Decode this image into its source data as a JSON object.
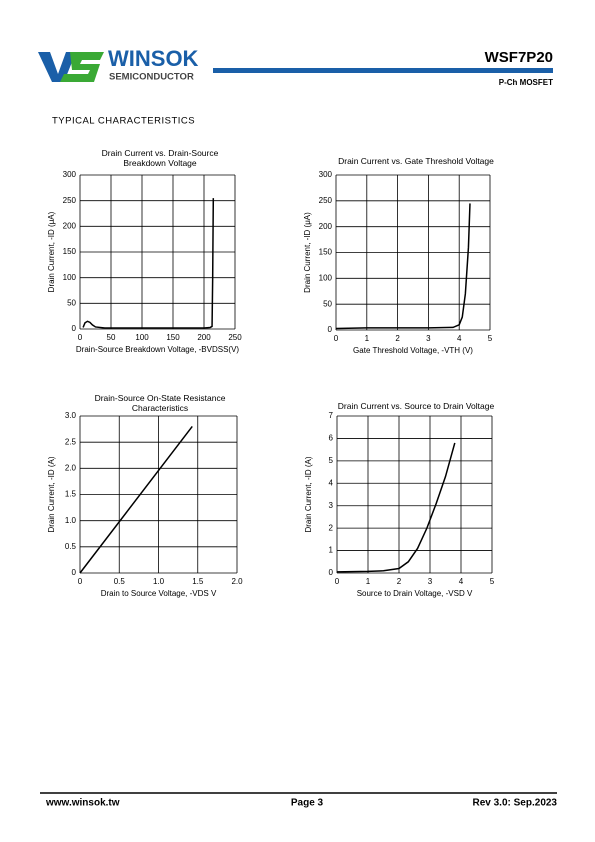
{
  "header": {
    "logo_text": "WINSOK",
    "logo_sub": "SEMICONDUCTOR",
    "part": "WSF7P20",
    "device": "P-Ch MOSFET"
  },
  "section_title": "TYPICAL CHARACTERISTICS",
  "chart_data": [
    {
      "type": "line",
      "title": "Drain Current vs. Drain-Source Breakdown Voltage",
      "x_label": "Drain-Source Breakdown Voltage, -BVDSS(V)",
      "y_label": "Drain Current, -ID (μA)",
      "x": [
        5,
        8,
        12,
        16,
        20,
        25,
        40,
        100,
        150,
        200,
        210,
        213,
        214,
        215
      ],
      "values": [
        3,
        12,
        15,
        13,
        8,
        4,
        2,
        2,
        2,
        2,
        3,
        5,
        100,
        255
      ],
      "color": "#000000",
      "xlim": [
        0,
        250
      ],
      "xticks": [
        0,
        50,
        100,
        150,
        200,
        250
      ],
      "ylim": [
        0,
        300
      ],
      "yticks": [
        0,
        50,
        100,
        150,
        200,
        250,
        300
      ],
      "grid": true
    },
    {
      "type": "line",
      "title": "Drain Current vs. Gate Threshold Voltage",
      "x_label": "Gate Threshold Voltage, -VTH (V)",
      "y_label": "Drain Current, -ID (μA)",
      "x": [
        0,
        1,
        2,
        3,
        3.8,
        4.0,
        4.1,
        4.2,
        4.3,
        4.35
      ],
      "values": [
        3,
        4,
        4,
        4,
        5,
        10,
        25,
        70,
        160,
        245
      ],
      "color": "#000000",
      "xlim": [
        0,
        5
      ],
      "xticks": [
        0,
        1,
        2,
        3,
        4,
        5
      ],
      "ylim": [
        0,
        300
      ],
      "yticks": [
        0,
        50,
        100,
        150,
        200,
        250,
        300
      ],
      "grid": true
    },
    {
      "type": "line",
      "title": "Drain-Source On-State Resistance Characteristics",
      "x_label": "Drain to Source Voltage, -VDS V",
      "y_label": "Drain Current, -ID (A)",
      "x": [
        0,
        1.43
      ],
      "values": [
        0,
        2.8
      ],
      "color": "#000000",
      "xlim": [
        0,
        2
      ],
      "xticks": [
        0,
        0.5,
        {
          "value": 1,
          "label": "1.0"
        },
        1.5,
        {
          "value": 2,
          "label": "2.0"
        }
      ],
      "ylim": [
        0,
        3
      ],
      "yticks": [
        0,
        0.5,
        {
          "value": 1,
          "label": "1.0"
        },
        1.5,
        {
          "value": 2,
          "label": "2.0"
        },
        2.5,
        {
          "value": 3,
          "label": "3.0"
        }
      ],
      "grid": true
    },
    {
      "type": "line",
      "title": "Drain Current vs. Source to Drain Voltage",
      "x_label": "Source to Drain Voltage, -VSD V",
      "y_label": "Drain Current, -ID (A)",
      "x": [
        0,
        1.0,
        1.5,
        2.0,
        2.3,
        2.6,
        2.9,
        3.2,
        3.5,
        3.8
      ],
      "values": [
        0.05,
        0.07,
        0.1,
        0.2,
        0.5,
        1.1,
        2.0,
        3.1,
        4.3,
        5.8
      ],
      "color": "#000000",
      "xlim": [
        0,
        5
      ],
      "xticks": [
        0,
        1,
        2,
        3,
        4,
        5
      ],
      "ylim": [
        0,
        7
      ],
      "yticks": [
        0,
        1,
        2,
        3,
        4,
        5,
        6,
        7
      ],
      "grid": true
    }
  ],
  "footer": {
    "site": "www.winsok.tw",
    "page": "Page 3",
    "rev": "Rev 3.0: Sep.2023"
  }
}
